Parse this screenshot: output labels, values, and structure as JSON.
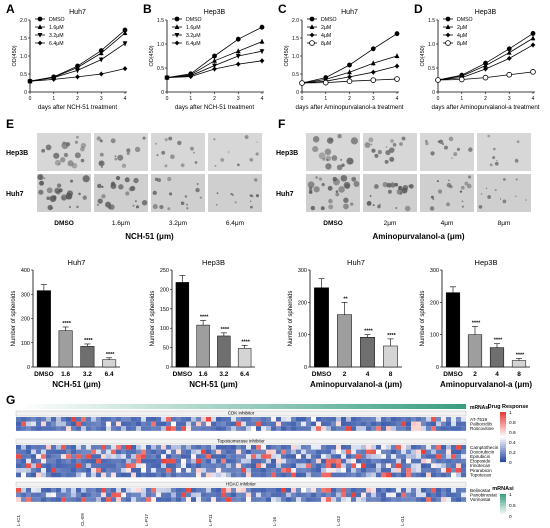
{
  "panels": {
    "A": {
      "letter": "A",
      "title": "Huh7",
      "ylabel": "OD(450)",
      "xlabel": "days after NCH-51 treatment"
    },
    "B": {
      "letter": "B",
      "title": "Hep3B",
      "ylabel": "OD(450)",
      "xlabel": "days after NCH-51 treatment"
    },
    "C": {
      "letter": "C",
      "title": "Huh7",
      "ylabel": "OD(450)",
      "xlabel": "days after Aminopurvalanol-a treatment"
    },
    "D": {
      "letter": "D",
      "title": "Hep3B",
      "ylabel": "OD(450)",
      "xlabel": "days after Aminopurvalanol-a treatment"
    },
    "E": {
      "letter": "E",
      "rows": [
        "Hep3B",
        "Huh7"
      ],
      "cols": [
        "DMSO",
        "1.6μm",
        "3.2μm",
        "6.4μm"
      ],
      "drug": "NCH-51 (μm)"
    },
    "F": {
      "letter": "F",
      "rows": [
        "Hep3B",
        "Huh7"
      ],
      "cols": [
        "DMSO",
        "2μm",
        "4μm",
        "8μm"
      ],
      "drug": "Aminopurvalanol-a (μm)"
    },
    "G": {
      "letter": "G",
      "cdk": "CDK inhibitor",
      "topo": "Topoisomerase inhibitor",
      "hdac": "HDAC inhibitor",
      "mrna_label": "mRNAsi",
      "drug_response": "Drug Response",
      "cdk_drugs": [
        "AT-7519",
        "Palbociclib",
        "Roscovitine"
      ],
      "topo_drugs": [
        "Camptothecin",
        "Doxorubicin",
        "Epirubicin",
        "Etoposide",
        "Irinotecan",
        "Pirarubicin",
        "Topotecan"
      ],
      "hdac_drugs": [
        "Belinostat",
        "Panobinostat",
        "Vorinostat"
      ],
      "legend_ticks": [
        "1",
        "0.8",
        "0.6",
        "0.4",
        "0.2",
        "0"
      ],
      "mrna_ticks": [
        "1",
        "0.5",
        "0"
      ]
    }
  },
  "chart_data": [
    {
      "type": "line",
      "panel": "A",
      "title": "Huh7",
      "ylabel": "OD(450)",
      "xlabel": "days after NCH-51 treatment",
      "x": [
        0,
        1,
        2,
        3,
        4
      ],
      "xlim": [
        0,
        4
      ],
      "ylim": [
        0,
        2.0
      ],
      "yticks": [
        0,
        0.5,
        1.0,
        1.5,
        2.0
      ],
      "yticklabels": [
        "0",
        "0.5",
        "1.0",
        "1.5",
        "2.0"
      ],
      "series": [
        {
          "name": "DMSO",
          "marker": "circle",
          "values": [
            0.3,
            0.42,
            0.72,
            1.15,
            1.72
          ]
        },
        {
          "name": "1.6μM",
          "marker": "triangle-up",
          "values": [
            0.3,
            0.41,
            0.68,
            1.08,
            1.64
          ]
        },
        {
          "name": "3.2μM",
          "marker": "triangle-down",
          "values": [
            0.3,
            0.4,
            0.6,
            0.9,
            1.35
          ]
        },
        {
          "name": "6.4μM",
          "marker": "diamond",
          "values": [
            0.3,
            0.35,
            0.42,
            0.5,
            0.65
          ]
        }
      ]
    },
    {
      "type": "line",
      "panel": "B",
      "title": "Hep3B",
      "ylabel": "OD(450)",
      "xlabel": "days after NCH-51 treatment",
      "x": [
        0,
        1,
        2,
        3,
        4
      ],
      "xlim": [
        0,
        4
      ],
      "ylim": [
        0,
        1.5
      ],
      "yticks": [
        0,
        0.5,
        1.0,
        1.5
      ],
      "yticklabels": [
        "0",
        "0.5",
        "1.0",
        "1.5"
      ],
      "series": [
        {
          "name": "DMSO",
          "marker": "circle",
          "values": [
            0.3,
            0.38,
            0.75,
            1.1,
            1.35
          ]
        },
        {
          "name": "1.6μM",
          "marker": "triangle-up",
          "values": [
            0.3,
            0.36,
            0.65,
            0.85,
            1.05
          ]
        },
        {
          "name": "3.2μM",
          "marker": "triangle-down",
          "values": [
            0.3,
            0.34,
            0.55,
            0.75,
            0.85
          ]
        },
        {
          "name": "6.4μM",
          "marker": "diamond",
          "values": [
            0.3,
            0.32,
            0.48,
            0.58,
            0.65
          ]
        }
      ]
    },
    {
      "type": "line",
      "panel": "C",
      "title": "Huh7",
      "ylabel": "OD(450)",
      "xlabel": "days after Aminopurvalanol-a treatment",
      "x": [
        0,
        1,
        2,
        3,
        4
      ],
      "xlim": [
        0,
        4
      ],
      "ylim": [
        0,
        2.0
      ],
      "yticks": [
        0,
        0.5,
        1.0,
        1.5,
        2.0
      ],
      "yticklabels": [
        "0",
        "0.5",
        "1.0",
        "1.5",
        "2.0"
      ],
      "series": [
        {
          "name": "DMSO",
          "marker": "circle",
          "values": [
            0.25,
            0.4,
            0.75,
            1.2,
            1.62
          ]
        },
        {
          "name": "2μM",
          "marker": "triangle-up",
          "values": [
            0.25,
            0.35,
            0.55,
            0.8,
            1.0
          ]
        },
        {
          "name": "4μM",
          "marker": "diamond",
          "values": [
            0.25,
            0.3,
            0.42,
            0.55,
            0.72
          ]
        },
        {
          "name": "8μM",
          "marker": "circle-open",
          "values": [
            0.25,
            0.26,
            0.3,
            0.33,
            0.36
          ]
        }
      ]
    },
    {
      "type": "line",
      "panel": "D",
      "title": "Hep3B",
      "ylabel": "OD(450)",
      "xlabel": "days after Aminopurvalanol-a treatment",
      "x": [
        0,
        1,
        2,
        3,
        4
      ],
      "xlim": [
        0,
        4
      ],
      "ylim": [
        0,
        1.5
      ],
      "yticks": [
        0,
        0.5,
        1.0,
        1.5
      ],
      "yticklabels": [
        "0",
        "0.5",
        "1.0",
        "1.5"
      ],
      "series": [
        {
          "name": "DMSO",
          "marker": "circle",
          "values": [
            0.25,
            0.35,
            0.6,
            0.9,
            1.22
          ]
        },
        {
          "name": "2μM",
          "marker": "triangle-up",
          "values": [
            0.25,
            0.33,
            0.55,
            0.82,
            1.12
          ]
        },
        {
          "name": "4μM",
          "marker": "diamond",
          "values": [
            0.25,
            0.3,
            0.48,
            0.7,
            0.98
          ]
        },
        {
          "name": "8μM",
          "marker": "circle-open",
          "values": [
            0.25,
            0.26,
            0.3,
            0.36,
            0.42
          ]
        }
      ]
    },
    {
      "type": "bar",
      "panel": "E-Huh7",
      "title": "Huh7",
      "ylabel": "Number of spheroids",
      "xlabel": "NCH-51 (μm)",
      "categories": [
        "DMSO",
        "1.6",
        "3.2",
        "6.4"
      ],
      "values": [
        315,
        150,
        85,
        30
      ],
      "errors": [
        25,
        15,
        10,
        8
      ],
      "significance": [
        "",
        "****",
        "****",
        "****"
      ],
      "colors": [
        "#000000",
        "#9e9e9e",
        "#6f6f6f",
        "#d4d4d4"
      ],
      "ylim": [
        0,
        400
      ],
      "yticks": [
        0,
        100,
        200,
        300,
        400
      ]
    },
    {
      "type": "bar",
      "panel": "E-Hep3B",
      "title": "Hep3B",
      "ylabel": "Number of spheroids",
      "xlabel": "NCH-51 (μm)",
      "categories": [
        "DMSO",
        "1.6",
        "3.2",
        "6.4"
      ],
      "values": [
        218,
        108,
        80,
        48
      ],
      "errors": [
        18,
        12,
        8,
        8
      ],
      "significance": [
        "",
        "****",
        "****",
        "****"
      ],
      "colors": [
        "#000000",
        "#9e9e9e",
        "#6f6f6f",
        "#d4d4d4"
      ],
      "ylim": [
        0,
        250
      ],
      "yticks": [
        0,
        50,
        100,
        150,
        200,
        250
      ]
    },
    {
      "type": "bar",
      "panel": "F-Huh7",
      "title": "Huh7",
      "ylabel": "Number of spheroids",
      "xlabel": "Aminopurvalanol-a (μm)",
      "categories": [
        "DMSO",
        "2",
        "4",
        "8"
      ],
      "values": [
        245,
        162,
        92,
        65
      ],
      "errors": [
        28,
        38,
        8,
        22
      ],
      "significance": [
        "",
        "**",
        "****",
        "****"
      ],
      "colors": [
        "#000000",
        "#9e9e9e",
        "#6f6f6f",
        "#d4d4d4"
      ],
      "ylim": [
        0,
        300
      ],
      "yticks": [
        0,
        100,
        200,
        300
      ]
    },
    {
      "type": "bar",
      "panel": "F-Hep3B",
      "title": "Hep3B",
      "ylabel": "Number of spheroids",
      "xlabel": "Aminopurvalanol-a (μm)",
      "categories": [
        "DMSO",
        "2",
        "4",
        "8"
      ],
      "values": [
        230,
        100,
        60,
        20
      ],
      "errors": [
        18,
        25,
        12,
        6
      ],
      "significance": [
        "",
        "****",
        "****",
        "****"
      ],
      "colors": [
        "#000000",
        "#9e9e9e",
        "#6f6f6f",
        "#d4d4d4"
      ],
      "ylim": [
        0,
        300
      ],
      "yticks": [
        0,
        100,
        200,
        300
      ]
    },
    {
      "type": "heatmap",
      "panel": "G",
      "legend_title": "Drug Response",
      "range": [
        0,
        1
      ],
      "colors": {
        "low": "#2c4fa5",
        "mid": "#ffffff",
        "high": "#e8413b"
      },
      "groups": [
        "CDK inhibitor",
        "Topoisomerase inhibitor",
        "HDAC inhibitor"
      ],
      "rows": [
        "AT-7519",
        "Palbociclib",
        "Roscovitine",
        "Camptothecin",
        "Doxorubicin",
        "Epirubicin",
        "Etoposide",
        "Irinotecan",
        "Pirarubicin",
        "Topotecan",
        "Belinostat",
        "Panobinostat",
        "Vorinostat"
      ],
      "annotation": {
        "name": "mRNAsi",
        "range": [
          0,
          1
        ],
        "low": "#ffffff",
        "high": "#3a9e82"
      },
      "cell_lines": [
        "L-IC1",
        "CL-E9",
        "L-P17",
        "L-P11",
        "L-16",
        "L-G2",
        "L-G1"
      ]
    }
  ]
}
